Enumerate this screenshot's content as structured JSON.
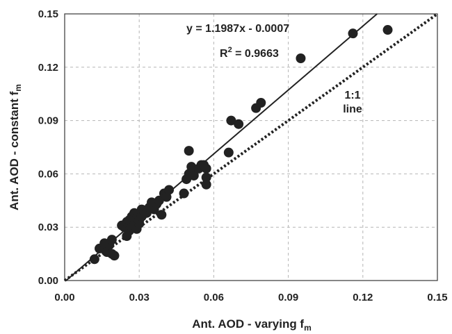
{
  "chart_data": {
    "type": "scatter",
    "xlabel": "Ant. AOD - varying f",
    "xlabel_sub": "m",
    "ylabel": "Ant. AOD - constant f",
    "ylabel_sub": "m",
    "xlim": [
      0,
      0.15
    ],
    "ylim": [
      0,
      0.15
    ],
    "xticks": [
      "0.00",
      "0.03",
      "0.06",
      "0.09",
      "0.12",
      "0.15"
    ],
    "yticks": [
      "0.00",
      "0.03",
      "0.06",
      "0.09",
      "0.12",
      "0.15"
    ],
    "grid": true,
    "marker_color": "#222222",
    "points": [
      {
        "x": 0.012,
        "y": 0.012
      },
      {
        "x": 0.014,
        "y": 0.018
      },
      {
        "x": 0.016,
        "y": 0.021
      },
      {
        "x": 0.017,
        "y": 0.016
      },
      {
        "x": 0.018,
        "y": 0.02
      },
      {
        "x": 0.019,
        "y": 0.023
      },
      {
        "x": 0.019,
        "y": 0.015
      },
      {
        "x": 0.02,
        "y": 0.014
      },
      {
        "x": 0.023,
        "y": 0.031
      },
      {
        "x": 0.024,
        "y": 0.03
      },
      {
        "x": 0.025,
        "y": 0.033
      },
      {
        "x": 0.025,
        "y": 0.025
      },
      {
        "x": 0.026,
        "y": 0.028
      },
      {
        "x": 0.026,
        "y": 0.034
      },
      {
        "x": 0.027,
        "y": 0.03
      },
      {
        "x": 0.027,
        "y": 0.036
      },
      {
        "x": 0.028,
        "y": 0.038
      },
      {
        "x": 0.028,
        "y": 0.031
      },
      {
        "x": 0.029,
        "y": 0.035
      },
      {
        "x": 0.029,
        "y": 0.029
      },
      {
        "x": 0.03,
        "y": 0.032
      },
      {
        "x": 0.03,
        "y": 0.034
      },
      {
        "x": 0.031,
        "y": 0.036
      },
      {
        "x": 0.031,
        "y": 0.04
      },
      {
        "x": 0.032,
        "y": 0.039
      },
      {
        "x": 0.033,
        "y": 0.038
      },
      {
        "x": 0.034,
        "y": 0.041
      },
      {
        "x": 0.035,
        "y": 0.044
      },
      {
        "x": 0.036,
        "y": 0.04
      },
      {
        "x": 0.037,
        "y": 0.043
      },
      {
        "x": 0.038,
        "y": 0.045
      },
      {
        "x": 0.039,
        "y": 0.037
      },
      {
        "x": 0.04,
        "y": 0.049
      },
      {
        "x": 0.041,
        "y": 0.047
      },
      {
        "x": 0.042,
        "y": 0.051
      },
      {
        "x": 0.048,
        "y": 0.049
      },
      {
        "x": 0.049,
        "y": 0.057
      },
      {
        "x": 0.05,
        "y": 0.06
      },
      {
        "x": 0.05,
        "y": 0.073
      },
      {
        "x": 0.051,
        "y": 0.064
      },
      {
        "x": 0.052,
        "y": 0.059
      },
      {
        "x": 0.054,
        "y": 0.063
      },
      {
        "x": 0.055,
        "y": 0.065
      },
      {
        "x": 0.056,
        "y": 0.065
      },
      {
        "x": 0.057,
        "y": 0.054
      },
      {
        "x": 0.057,
        "y": 0.058
      },
      {
        "x": 0.057,
        "y": 0.063
      },
      {
        "x": 0.066,
        "y": 0.072
      },
      {
        "x": 0.067,
        "y": 0.09
      },
      {
        "x": 0.07,
        "y": 0.088
      },
      {
        "x": 0.077,
        "y": 0.097
      },
      {
        "x": 0.079,
        "y": 0.1
      },
      {
        "x": 0.095,
        "y": 0.125
      },
      {
        "x": 0.116,
        "y": 0.139
      },
      {
        "x": 0.13,
        "y": 0.141
      }
    ],
    "regression": {
      "slope": 1.1987,
      "intercept": -0.0007,
      "style": "solid"
    },
    "reference_line": {
      "slope": 1,
      "intercept": 0,
      "style": "dotted"
    },
    "annotations": {
      "equation": "y = 1.1987x - 0.0007",
      "r2_prefix": "R",
      "r2_exp": "2",
      "r2_value": " = 0.9663",
      "one_to_one_1": "1:1",
      "one_to_one_2": "line"
    }
  }
}
